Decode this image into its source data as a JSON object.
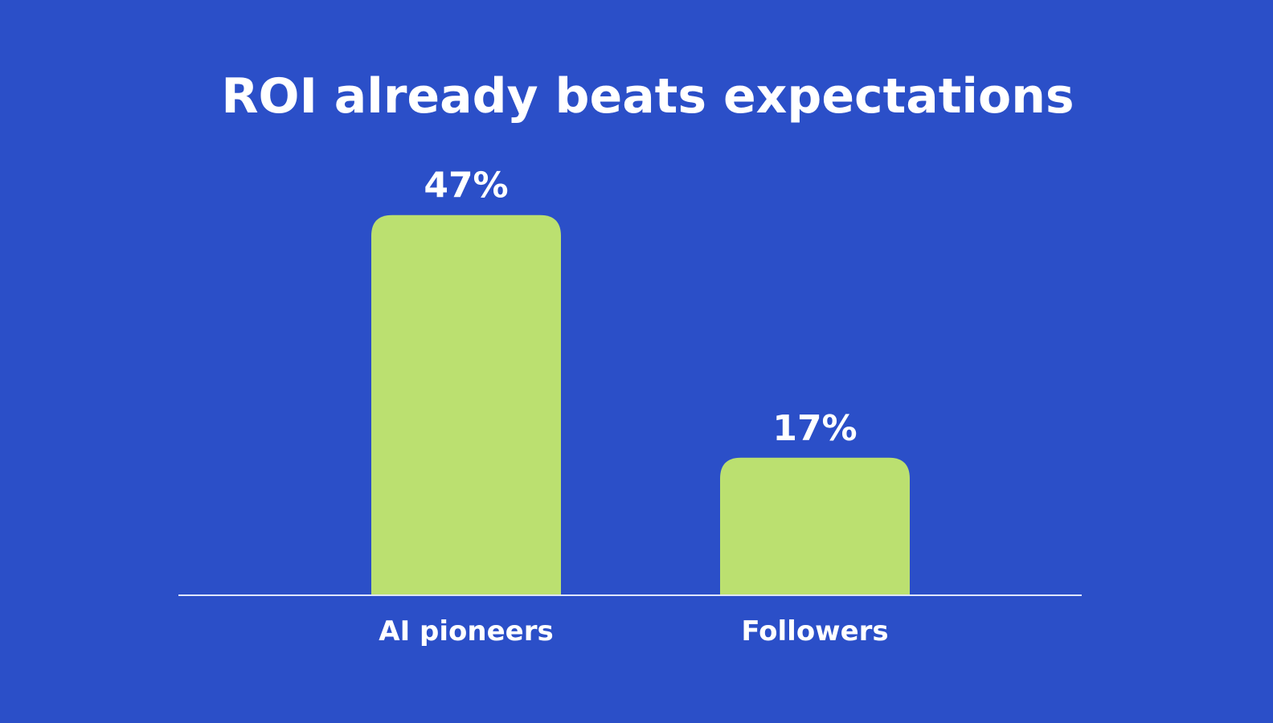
{
  "chart_data": {
    "type": "bar",
    "title": "ROI already beats expectations",
    "categories": [
      "AI pioneers",
      "Followers"
    ],
    "values": [
      47,
      17
    ],
    "value_labels": [
      "47%",
      "17%"
    ],
    "unit": "%",
    "xlabel": "",
    "ylabel": "",
    "ylim": [
      0,
      50
    ],
    "grid": false,
    "legend": "none",
    "colors": {
      "background": "#2b4fc8",
      "bar": "#bbe070",
      "baseline": "#dfe6ff",
      "text": "#ffffff"
    }
  }
}
